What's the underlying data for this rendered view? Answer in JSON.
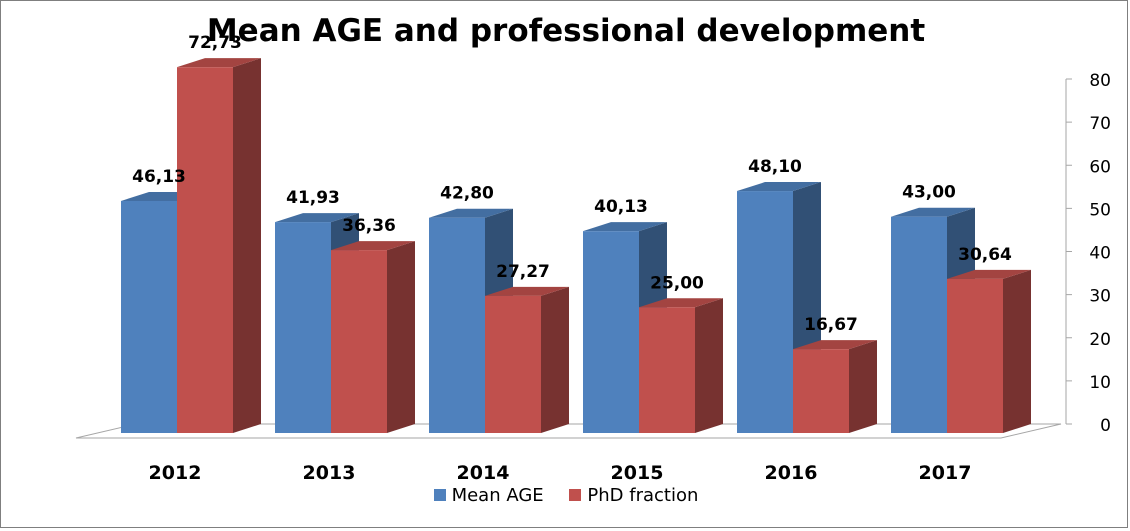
{
  "chart_data": {
    "type": "bar",
    "title": "Mean AGE and professional development",
    "categories": [
      "2012",
      "2013",
      "2014",
      "2015",
      "2016",
      "2017"
    ],
    "series": [
      {
        "name": "Mean AGE",
        "values": [
          46.13,
          41.93,
          42.8,
          40.13,
          48.1,
          43.0
        ],
        "labels": [
          "46,13",
          "41,93",
          "42,80",
          "40,13",
          "48,10",
          "43,00"
        ],
        "color": "#4f81bd"
      },
      {
        "name": "PhD fraction",
        "values": [
          72.73,
          36.36,
          27.27,
          25.0,
          16.67,
          30.64
        ],
        "labels": [
          "72,73",
          "36,36",
          "27,27",
          "25,00",
          "16,67",
          "30,64"
        ],
        "color": "#c0504d"
      }
    ],
    "yaxis": {
      "position": "right",
      "ticks": [
        "0",
        "10",
        "20",
        "30",
        "40",
        "50",
        "60",
        "70",
        "80"
      ],
      "range": [
        0,
        80
      ]
    },
    "legend_position": "bottom",
    "grid": false,
    "style": "3d-clustered-column"
  }
}
